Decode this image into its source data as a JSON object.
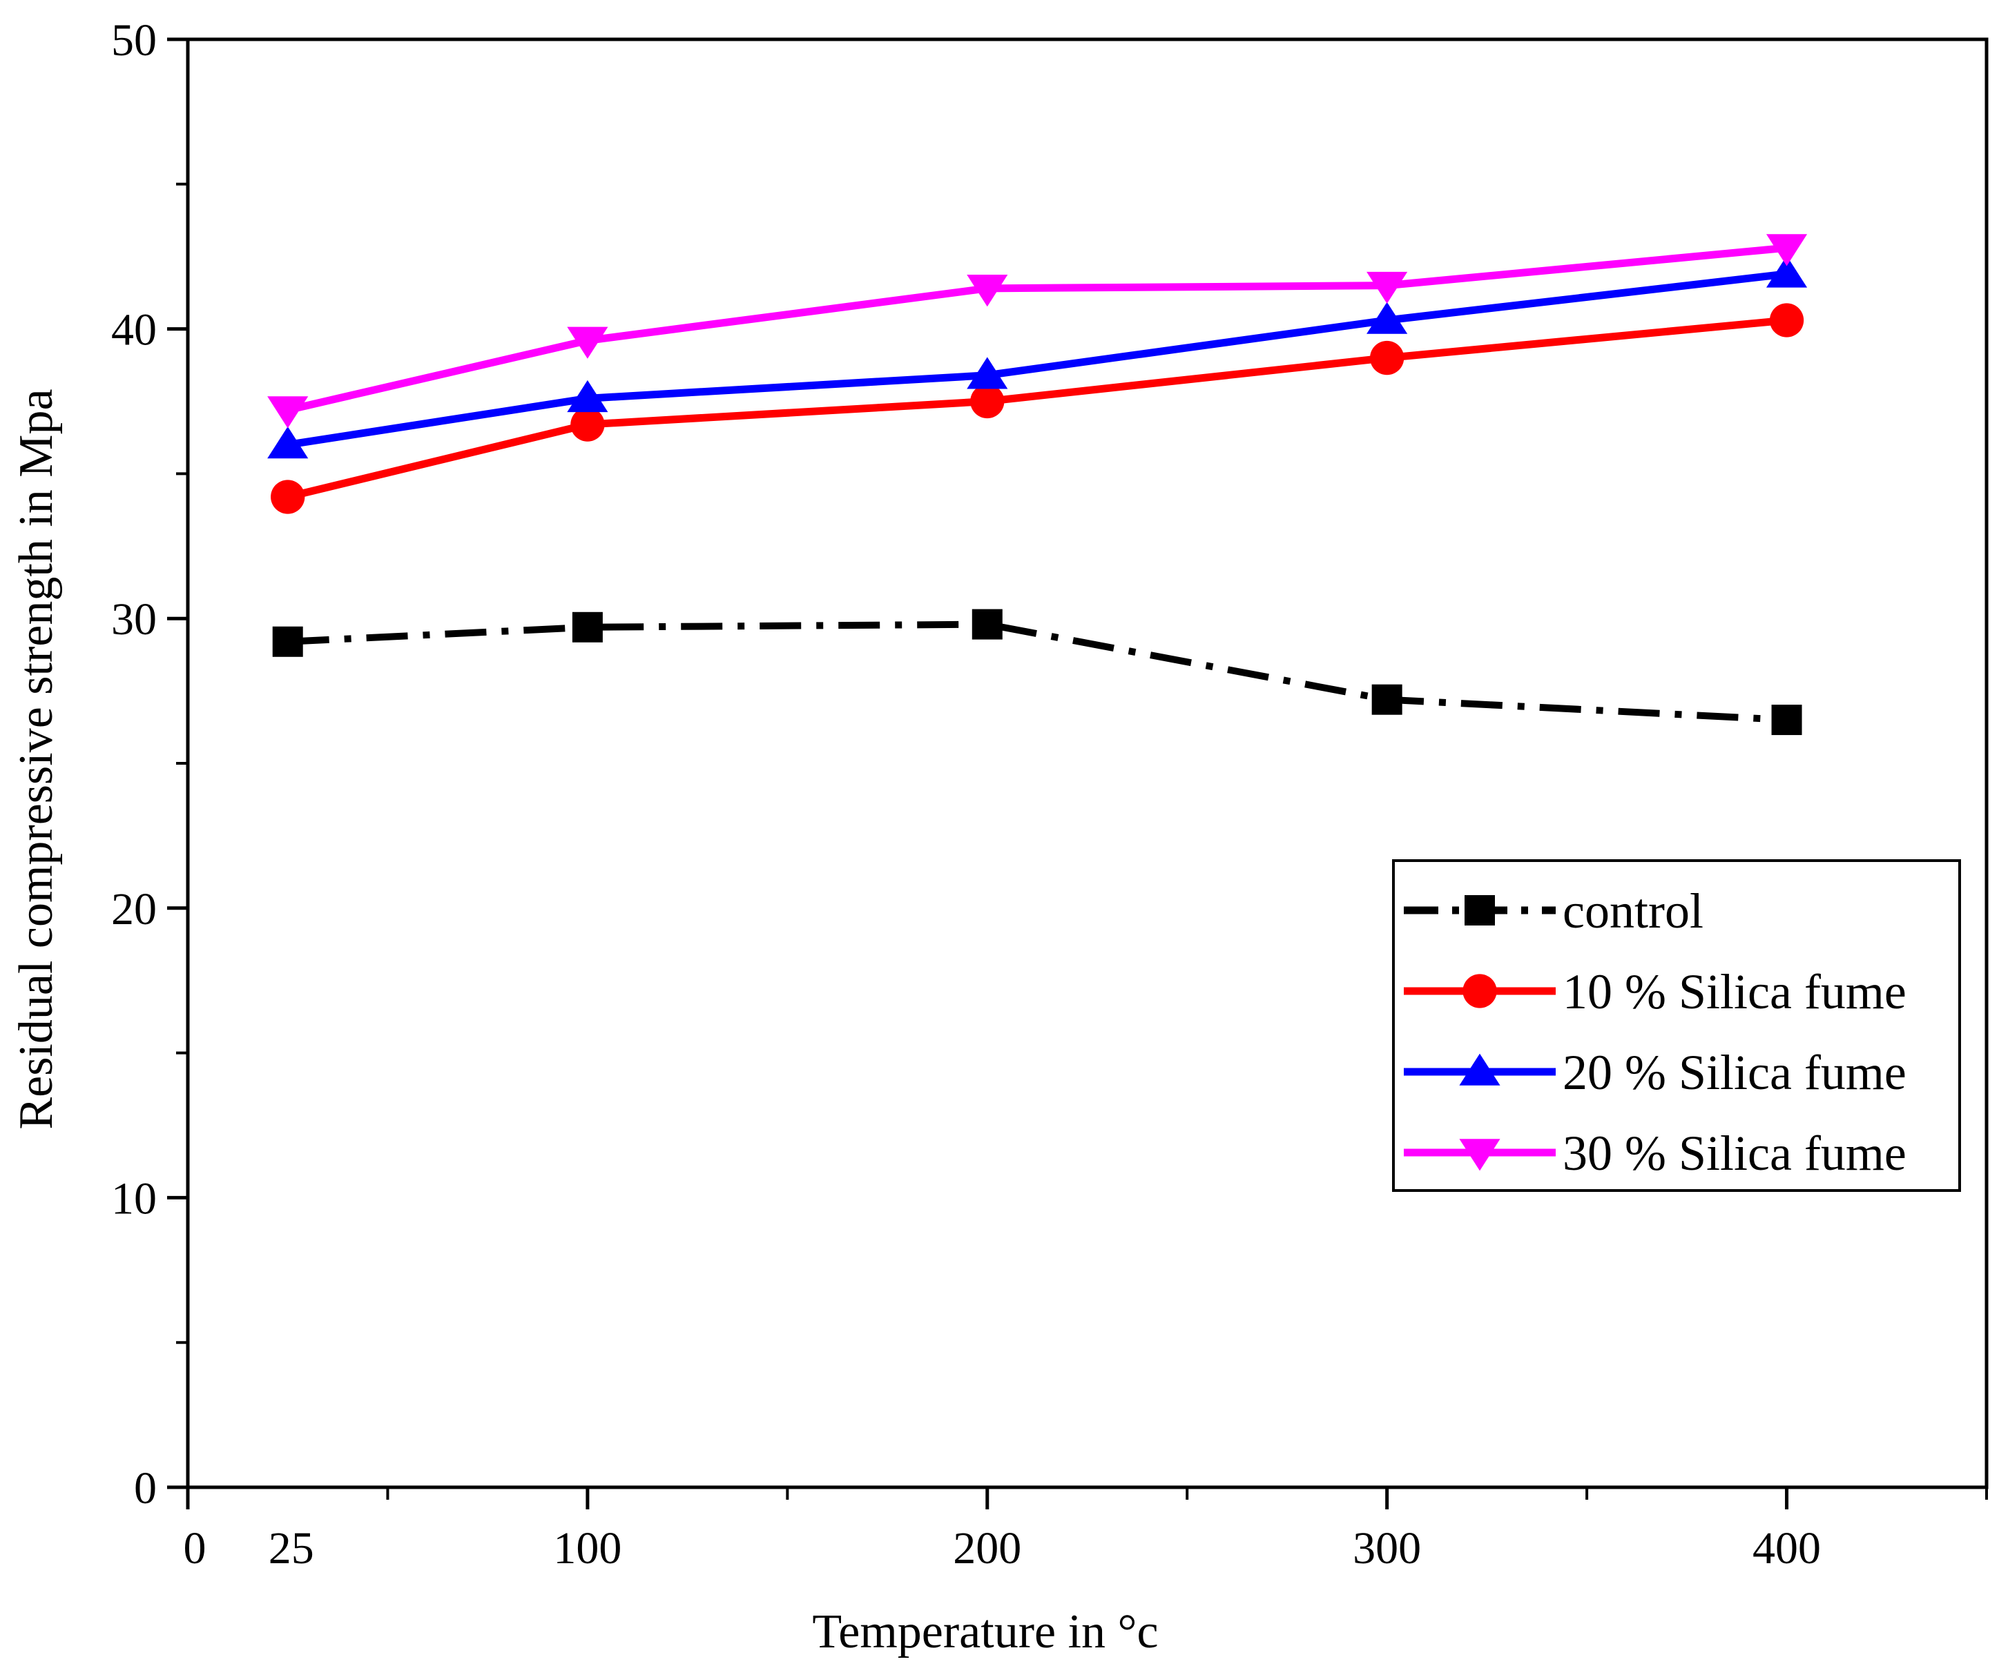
{
  "chart_data": {
    "type": "line",
    "title": "",
    "xlabel": "Temperature in °c",
    "ylabel": "Residual compressive strength in Mpa",
    "xlim": [
      0,
      450
    ],
    "ylim": [
      0,
      50
    ],
    "x_major_ticks": [
      0,
      100,
      200,
      300,
      400
    ],
    "x_minor_ticks": [
      50,
      150,
      250,
      350,
      450
    ],
    "y_major_ticks": [
      0,
      10,
      20,
      30,
      40,
      50
    ],
    "y_minor_ticks": [
      5,
      15,
      25,
      35,
      45
    ],
    "x_tick_labels": [
      {
        "value": 0,
        "label": "0"
      },
      {
        "value": 25,
        "label": "25"
      },
      {
        "value": 100,
        "label": "100"
      },
      {
        "value": 200,
        "label": "200"
      },
      {
        "value": 300,
        "label": "300"
      },
      {
        "value": 400,
        "label": "400"
      }
    ],
    "y_tick_labels": [
      "0",
      "10",
      "20",
      "30",
      "40",
      "50"
    ],
    "grid": false,
    "legend_position": "right-middle",
    "x": [
      25,
      100,
      200,
      300,
      400
    ],
    "series": [
      {
        "name": "control",
        "values": [
          29.2,
          29.7,
          29.8,
          27.2,
          26.5
        ],
        "color": "#000000",
        "marker": "square",
        "line_style": "dash-dot"
      },
      {
        "name": "10 % Silica fume",
        "values": [
          34.2,
          36.7,
          37.5,
          39.0,
          40.3
        ],
        "color": "#ff0000",
        "marker": "circle",
        "line_style": "solid"
      },
      {
        "name": "20 % Silica fume",
        "values": [
          36.0,
          37.6,
          38.4,
          40.3,
          41.9
        ],
        "color": "#0000ff",
        "marker": "triangle-up",
        "line_style": "solid"
      },
      {
        "name": "30 % Silica fume",
        "values": [
          37.2,
          39.6,
          41.4,
          41.5,
          42.8
        ],
        "color": "#ff00ff",
        "marker": "triangle-down",
        "line_style": "solid"
      }
    ]
  }
}
